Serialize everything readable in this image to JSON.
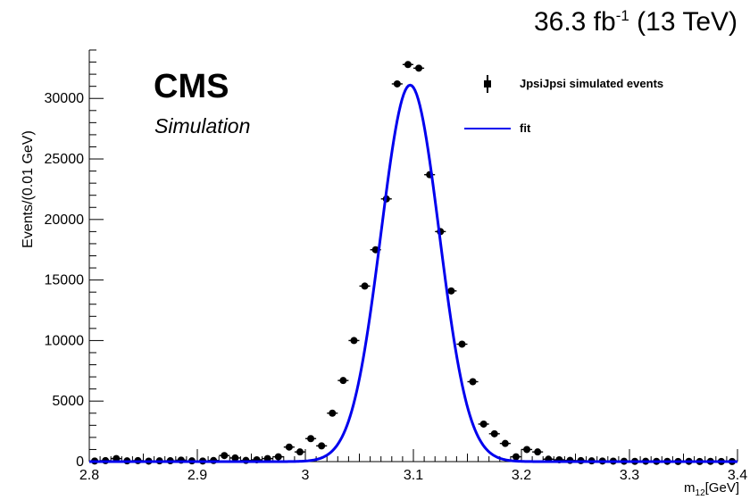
{
  "header": {
    "lumi_value": "36.3 fb",
    "lumi_exp": "-1",
    "energy": " (13 TeV)",
    "experiment": "CMS",
    "status": "Simulation"
  },
  "legend": {
    "data_label": "JpsiJpsi simulated events",
    "fit_label": "fit"
  },
  "axes": {
    "ylabel": "Events/(0.01 GeV)",
    "xlabel_main": "m",
    "xlabel_sub": "12",
    "xlabel_unit": "[GeV]"
  },
  "colors": {
    "fit_line": "#0000ee",
    "points": "#000000"
  },
  "chart_data": {
    "type": "scatter",
    "xlim": [
      2.8,
      3.4
    ],
    "ylim": [
      0,
      34000
    ],
    "x_ticks": [
      2.8,
      2.9,
      3.0,
      3.1,
      3.2,
      3.3,
      3.4
    ],
    "x_tick_labels": [
      "2.8",
      "2.9",
      "3",
      "3.1",
      "3.2",
      "3.3",
      "3.4"
    ],
    "y_ticks": [
      0,
      5000,
      10000,
      15000,
      20000,
      25000,
      30000
    ],
    "y_tick_labels": [
      "0",
      "5000",
      "10000",
      "15000",
      "20000",
      "25000",
      "30000"
    ],
    "bin_width": 0.01,
    "series": [
      {
        "name": "JpsiJpsi simulated events",
        "kind": "points_with_xerr",
        "x": [
          2.805,
          2.815,
          2.825,
          2.835,
          2.845,
          2.855,
          2.865,
          2.875,
          2.885,
          2.895,
          2.905,
          2.915,
          2.925,
          2.935,
          2.945,
          2.955,
          2.965,
          2.975,
          2.985,
          2.995,
          3.005,
          3.015,
          3.025,
          3.035,
          3.045,
          3.055,
          3.065,
          3.075,
          3.085,
          3.095,
          3.105,
          3.115,
          3.125,
          3.135,
          3.145,
          3.155,
          3.165,
          3.175,
          3.185,
          3.195,
          3.205,
          3.215,
          3.225,
          3.235,
          3.245,
          3.255,
          3.265,
          3.275,
          3.285,
          3.295,
          3.305,
          3.315,
          3.325,
          3.335,
          3.345,
          3.355,
          3.365,
          3.375,
          3.385,
          3.395
        ],
        "y": [
          50,
          80,
          250,
          60,
          80,
          40,
          60,
          70,
          120,
          60,
          50,
          90,
          500,
          300,
          100,
          150,
          250,
          400,
          1200,
          800,
          1900,
          1300,
          4000,
          6700,
          10000,
          14500,
          17500,
          21700,
          31200,
          32800,
          32500,
          23700,
          19000,
          14100,
          9700,
          6600,
          3100,
          2300,
          1500,
          400,
          1000,
          800,
          200,
          150,
          100,
          80,
          60,
          50,
          40,
          30,
          20,
          30,
          20,
          20,
          10,
          20,
          10,
          20,
          10,
          10
        ]
      },
      {
        "name": "fit",
        "kind": "gaussian_curve",
        "mean": 3.097,
        "sigma": 0.027,
        "amplitude": 31100
      }
    ]
  }
}
